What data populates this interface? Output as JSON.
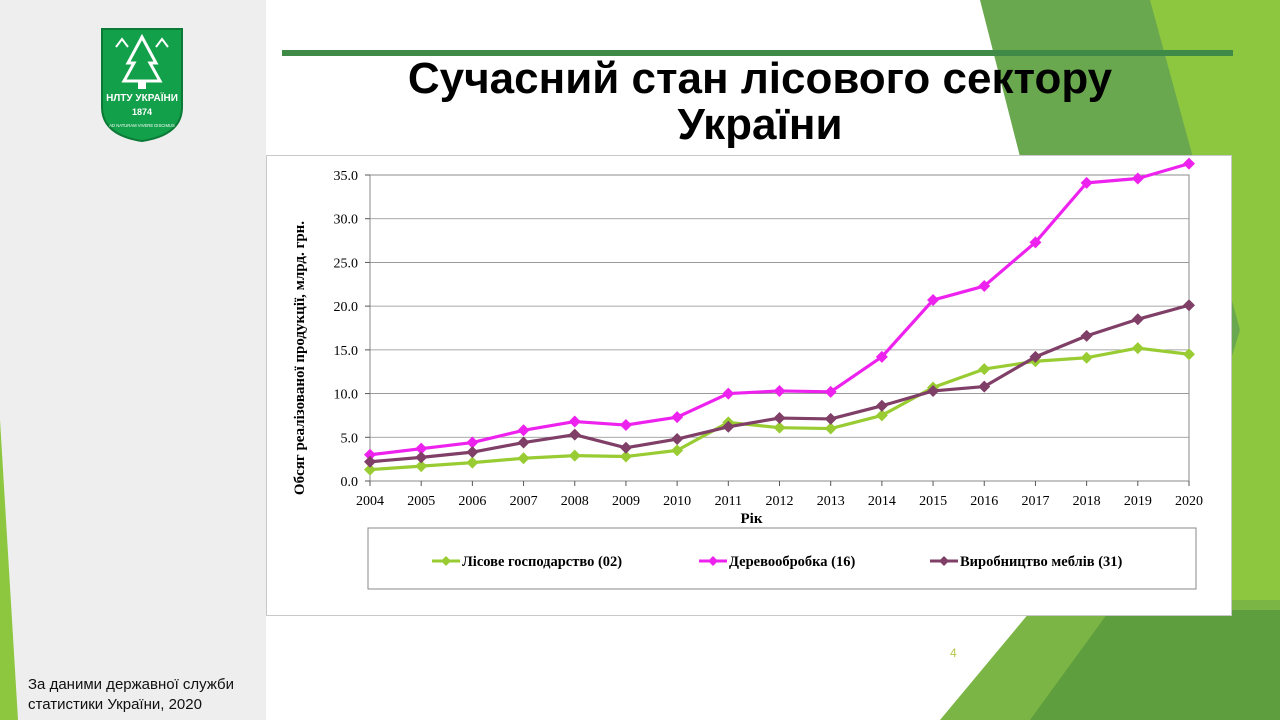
{
  "slide": {
    "title": "Сучасний стан лісового сектору України",
    "source_note": "За даними державної служби статистики України, 2020",
    "page_number": "4",
    "logo": {
      "text": "НЛТУ УКРАЇНИ",
      "year": "1874",
      "motto": "AD NATURAM VIVERE DISCIMUS",
      "color": "#12a04a"
    },
    "colors": {
      "accent_green": "#3e8a46",
      "light_green": "#8cc63f"
    }
  },
  "chart_data": {
    "type": "line",
    "xlabel": "Рік",
    "ylabel": "Обсяг реалізованої продукції, млрд. грн.",
    "ylim": [
      0,
      35
    ],
    "y_ticks": [
      "0.0",
      "5.0",
      "10.0",
      "15.0",
      "20.0",
      "25.0",
      "30.0",
      "35.0"
    ],
    "grid": true,
    "legend_position": "bottom",
    "x": [
      "2004",
      "2005",
      "2006",
      "2007",
      "2008",
      "2009",
      "2010",
      "2011",
      "2012",
      "2013",
      "2014",
      "2015",
      "2016",
      "2017",
      "2018",
      "2019",
      "2020"
    ],
    "series": [
      {
        "name": "Лісове господарство (02)",
        "color": "#99cc33",
        "values": [
          1.3,
          1.7,
          2.1,
          2.6,
          2.9,
          2.8,
          3.5,
          6.7,
          6.1,
          6.0,
          7.5,
          10.7,
          12.8,
          13.7,
          14.1,
          15.2,
          14.5
        ]
      },
      {
        "name": "Деревообробка (16)",
        "color": "#ee22ee",
        "values": [
          3.0,
          3.7,
          4.4,
          5.8,
          6.8,
          6.4,
          7.3,
          10.0,
          10.3,
          10.2,
          14.2,
          20.7,
          22.3,
          27.3,
          34.1,
          34.6,
          36.3
        ]
      },
      {
        "name": "Виробництво меблів (31)",
        "color": "#7f3f67",
        "values": [
          2.2,
          2.7,
          3.3,
          4.4,
          5.3,
          3.8,
          4.8,
          6.2,
          7.2,
          7.1,
          8.6,
          10.3,
          10.8,
          14.2,
          16.6,
          18.5,
          20.1
        ]
      }
    ]
  }
}
